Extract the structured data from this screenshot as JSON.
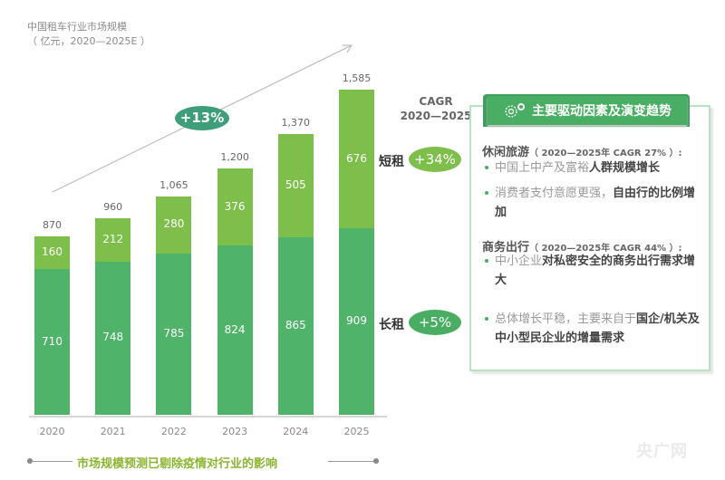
{
  "title": {
    "line1": "中国租车行业市场规模",
    "line2": "（ 亿元，2020—2025E ）"
  },
  "overall_cagr": "+13%",
  "cagr_header": {
    "line1": "CAGR",
    "line2": "2020—2025"
  },
  "segments": {
    "short": {
      "label": "短租",
      "cagr": "+34%"
    },
    "long": {
      "label": "长租",
      "cagr": "+5%"
    }
  },
  "panel": {
    "header": "主要驱动因素及演变趋势",
    "sections": [
      {
        "title": "休闲旅游",
        "subtitle": "（ 2020—2025年 CAGR 27% ）:",
        "bullets": [
          {
            "plain": "中国上中产及富裕",
            "bold": "人群规模增长"
          },
          {
            "plain": "消费者支付意愿更强，",
            "bold": "自由行的比例增加"
          }
        ]
      },
      {
        "title": "商务出行",
        "subtitle": "（ 2020—2025年 CAGR 44% ）:",
        "bullets": [
          {
            "plain": "中小企业",
            "bold": "对私密安全的商务出行需求增大"
          }
        ]
      },
      {
        "title": "",
        "subtitle": "",
        "bullets": [
          {
            "plain": "总体增长平稳，主要来自于",
            "bold": "国企/机关及中小型民企业的增量需求"
          }
        ]
      }
    ]
  },
  "footnote": "市场规模预测已剔除疫情对行业的影响",
  "watermark": "央广网",
  "colors": {
    "long_rent": "#4fb36a",
    "short_rent": "#7dbf4a",
    "cagr_pill": "#3f9e7a",
    "footnote": "#8ab531"
  },
  "chart_data": {
    "type": "bar",
    "stacked": true,
    "title": "中国租车行业市场规模（亿元，2020—2025E）",
    "categories": [
      "2020",
      "2021",
      "2022",
      "2023",
      "2024",
      "2025"
    ],
    "series": [
      {
        "name": "长租",
        "values": [
          710,
          748,
          785,
          824,
          865,
          909
        ],
        "color": "#4fb36a"
      },
      {
        "name": "短租",
        "values": [
          160,
          212,
          280,
          376,
          505,
          676
        ],
        "color": "#7dbf4a"
      }
    ],
    "totals": [
      "870",
      "960",
      "1,065",
      "1,200",
      "1,370",
      "1,585"
    ],
    "annotations": [
      {
        "text": "+13%",
        "meaning": "overall CAGR 2020—2025"
      },
      {
        "text": "短租 +34%",
        "meaning": "short-term CAGR"
      },
      {
        "text": "长租 +5%",
        "meaning": "long-term CAGR"
      }
    ],
    "xlabel": "",
    "ylabel": "亿元",
    "ylim": [
      0,
      1600
    ],
    "grid": false,
    "legend": "none"
  }
}
